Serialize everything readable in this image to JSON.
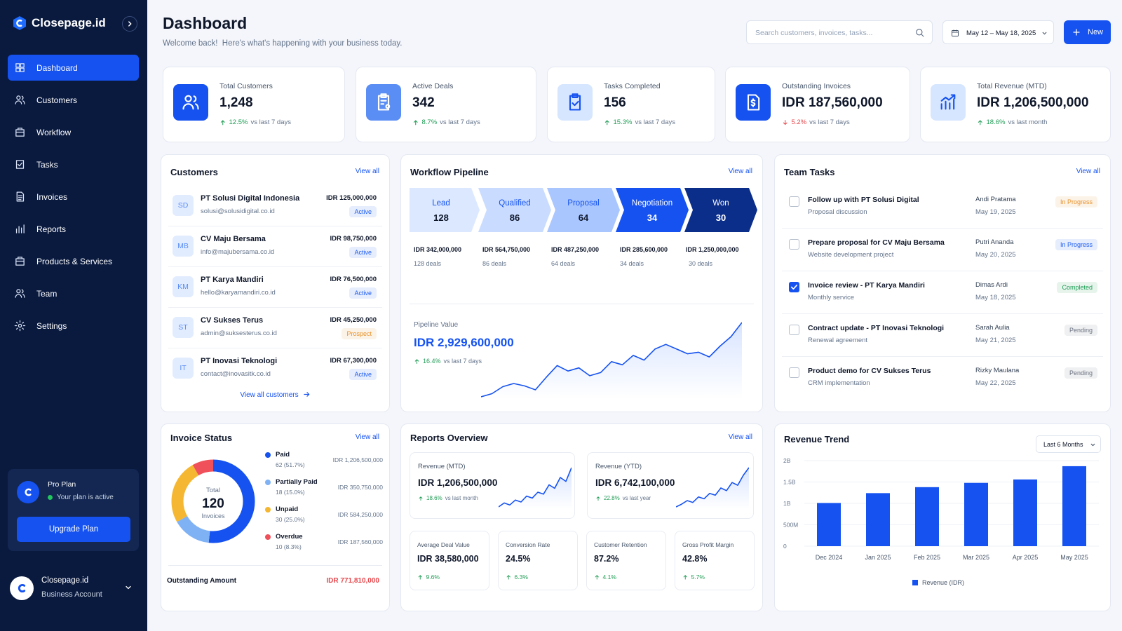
{
  "sidebar": {
    "brand": "Closepage.id",
    "nav": [
      "Dashboard",
      "Customers",
      "Workflow",
      "Tasks",
      "Invoices",
      "Reports",
      "Products & Services",
      "Team",
      "Settings"
    ],
    "plan": {
      "name": "Pro Plan",
      "status": "Your plan is active",
      "button": "Upgrade Plan"
    },
    "account": {
      "name": "Closepage.id",
      "type": "Business Account"
    }
  },
  "header": {
    "title": "Dashboard",
    "subtitle": "Welcome back!  Here's what's happening with your business today.",
    "search_placeholder": "Search customers, invoices, tasks...",
    "date_range": "May 12 – May 18, 2025",
    "new_button": "New"
  },
  "kpis": [
    {
      "label": "Total Customers",
      "value": "1,248",
      "change": "12.5%",
      "period": "vs last 7 days",
      "direction": "up",
      "color": "#1552f0"
    },
    {
      "label": "Active Deals",
      "value": "342",
      "change": "8.7%",
      "period": "vs last 7 days",
      "direction": "up",
      "color": "#5b8ef5"
    },
    {
      "label": "Tasks Completed",
      "value": "156",
      "change": "15.3%",
      "period": "vs last 7 days",
      "direction": "up",
      "color": "#d6e6ff"
    },
    {
      "label": "Outstanding Invoices",
      "value": "IDR 187,560,000",
      "change": "5.2%",
      "period": "vs last 7 days",
      "direction": "down",
      "color": "#1552f0"
    },
    {
      "label": "Total Revenue (MTD)",
      "value": "IDR 1,206,500,000",
      "change": "18.6%",
      "period": "vs last month",
      "direction": "up",
      "color": "#d6e6ff"
    }
  ],
  "customers": {
    "title": "Customers",
    "view_all": "View all",
    "footer": "View all customers",
    "rows": [
      {
        "initials": "SD",
        "name": "PT Solusi Digital Indonesia",
        "email": "solusi@solusidigital.co.id",
        "amount": "IDR 125,000,000",
        "status": "Active",
        "badge_color": "#1d5cf0"
      },
      {
        "initials": "MB",
        "name": "CV Maju Bersama",
        "email": "info@majubersama.co.id",
        "amount": "IDR 98,750,000",
        "status": "Active",
        "badge_color": "#1d5cf0"
      },
      {
        "initials": "KM",
        "name": "PT Karya Mandiri",
        "email": "hello@karyamandiri.co.id",
        "amount": "IDR 76,500,000",
        "status": "Active",
        "badge_color": "#1d5cf0"
      },
      {
        "initials": "ST",
        "name": "CV Sukses Terus",
        "email": "admin@suksesterus.co.id",
        "amount": "IDR 45,250,000",
        "status": "Prospect",
        "badge_color": "#e8922a"
      },
      {
        "initials": "IT",
        "name": "PT Inovasi Teknologi",
        "email": "contact@inovasitk.co.id",
        "amount": "IDR 67,300,000",
        "status": "Active",
        "badge_color": "#1d5cf0"
      }
    ]
  },
  "pipeline": {
    "title": "Workflow Pipeline",
    "view_all": "View all",
    "stages": [
      {
        "name": "Lead",
        "count": 128,
        "value": "IDR 342,000,000",
        "deals": "128 deals",
        "color": "#dbe8ff"
      },
      {
        "name": "Qualified",
        "count": 86,
        "value": "IDR 564,750,000",
        "deals": "86 deals",
        "color": "#c9dcff"
      },
      {
        "name": "Proposal",
        "count": 64,
        "value": "IDR 487,250,000",
        "deals": "64 deals",
        "color": "#a9c6ff"
      },
      {
        "name": "Negotiation",
        "count": 34,
        "value": "IDR 285,600,000",
        "deals": "34 deals",
        "color": "#1552f0"
      },
      {
        "name": "Won",
        "count": 30,
        "value": "IDR 1,250,000,000",
        "deals": "30 deals",
        "color": "#0b2e8a"
      }
    ],
    "value_label": "Pipeline Value",
    "value": "IDR 2,929,600,000",
    "change": "16.4%",
    "period": "vs last 7 days",
    "direction": "up",
    "trend": [
      5,
      9,
      18,
      22,
      19,
      14,
      30,
      45,
      38,
      42,
      32,
      36,
      50,
      46,
      58,
      52,
      66,
      72,
      66,
      60,
      62,
      56,
      70,
      82,
      100
    ]
  },
  "tasks": {
    "title": "Team Tasks",
    "view_all": "View all",
    "rows": [
      {
        "title": "Follow up with PT Solusi Digital",
        "subtitle": "Proposal discussion",
        "assignee": "Andi Pratama",
        "date": "May 19, 2025",
        "status": "In Progress",
        "badge_color": "#e8922a",
        "done": false
      },
      {
        "title": "Prepare proposal for CV Maju Bersama",
        "subtitle": "Website development project",
        "assignee": "Putri Ananda",
        "date": "May 20, 2025",
        "status": "In Progress",
        "badge_color": "#1d5cf0",
        "done": false
      },
      {
        "title": "Invoice review - PT Karya Mandiri",
        "subtitle": "Monthly service",
        "assignee": "Dimas Ardi",
        "date": "May 18, 2025",
        "status": "Completed",
        "badge_color": "#1f9d55",
        "done": true
      },
      {
        "title": "Contract update - PT Inovasi Teknologi",
        "subtitle": "Renewal agreement",
        "assignee": "Sarah Aulia",
        "date": "May 21, 2025",
        "status": "Pending",
        "badge_color": "#6b7280",
        "done": false
      },
      {
        "title": "Product demo for CV Sukses Terus",
        "subtitle": "CRM implementation",
        "assignee": "Rizky Maulana",
        "date": "May 22, 2025",
        "status": "Pending",
        "badge_color": "#6b7280",
        "done": false
      }
    ]
  },
  "reports": {
    "title": "Reports Overview",
    "view_all": "View all",
    "cards": [
      {
        "label": "Revenue (MTD)",
        "value": "IDR 1,206,500,000",
        "change": "18.6%",
        "period": "vs last month",
        "direction": "up",
        "trend": [
          10,
          18,
          14,
          24,
          20,
          32,
          28,
          40,
          36,
          55,
          48,
          70,
          62,
          90
        ]
      },
      {
        "label": "Revenue (YTD)",
        "value": "IDR 6,742,100,000",
        "change": "22.8%",
        "period": "vs last year",
        "direction": "up",
        "trend": [
          8,
          14,
          22,
          18,
          30,
          26,
          38,
          34,
          50,
          44,
          62,
          56,
          78,
          95
        ]
      }
    ],
    "metrics": [
      {
        "label": "Average Deal Value",
        "value": "IDR 38,580,000",
        "change": "9.6%",
        "direction": "up"
      },
      {
        "label": "Conversion Rate",
        "value": "24.5%",
        "change": "6.3%",
        "direction": "up"
      },
      {
        "label": "Customer Retention",
        "value": "87.2%",
        "change": "4.1%",
        "direction": "up"
      },
      {
        "label": "Gross Profit Margin",
        "value": "42.8%",
        "change": "5.7%",
        "direction": "up"
      }
    ]
  },
  "chart_data": [
    {
      "type": "pie",
      "title": "Invoice Status",
      "view_all": "View all",
      "center_label": "Total",
      "total": 120,
      "center_sub": "Invoices",
      "categories": [
        "Paid",
        "Partially Paid",
        "Unpaid",
        "Overdue"
      ],
      "values": [
        62,
        18,
        30,
        10
      ],
      "value_labels": [
        "62 (51.7%)",
        "18 (15.0%)",
        "30 (25.0%)",
        "10 (8.3%)"
      ],
      "amounts": [
        "IDR 1,206,500,000",
        "IDR 350,750,000",
        "IDR 584,250,000",
        "IDR 187,560,000"
      ],
      "colors": [
        "#1552f0",
        "#7fb2f5",
        "#f5b731",
        "#f0505a"
      ],
      "footer_label": "Outstanding Amount",
      "footer_value": "IDR 771,810,000"
    },
    {
      "type": "bar",
      "title": "Revenue Trend",
      "period": "Last 6 Months",
      "categories": [
        "Dec 2024",
        "Jan 2025",
        "Feb 2025",
        "Mar 2025",
        "Apr 2025",
        "May 2025"
      ],
      "series": [
        {
          "name": "Revenue (IDR)",
          "color": "#1552f0",
          "values": [
            1010000000,
            1240000000,
            1380000000,
            1480000000,
            1560000000,
            1870000000
          ]
        }
      ],
      "ylim": [
        0,
        2000000000
      ],
      "yticks": [
        0,
        {
          "value": 500000000,
          "label": "500M"
        },
        {
          "value": 1000000000,
          "label": "1B"
        },
        {
          "value": 1500000000,
          "label": "1.5B"
        },
        {
          "value": 2000000000,
          "label": "2B"
        }
      ],
      "grid": true
    }
  ]
}
